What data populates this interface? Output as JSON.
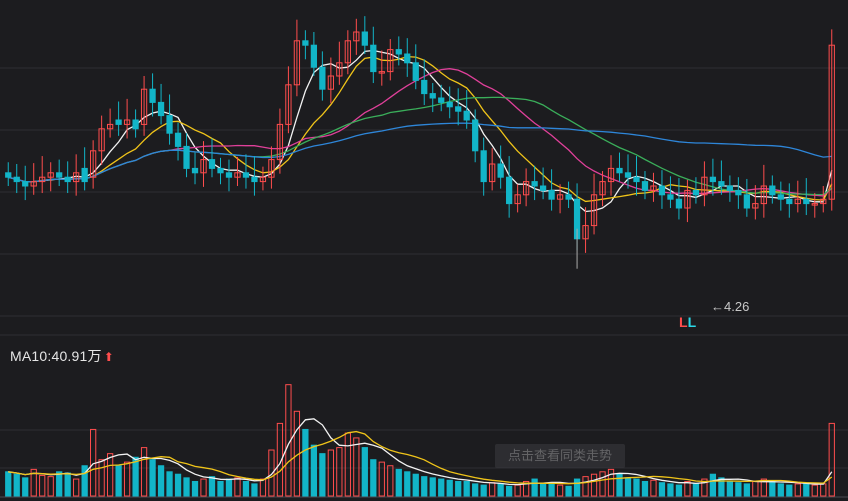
{
  "panel": {
    "ma_label": "MA10:40.91万",
    "ma_arrow": "⬆",
    "min_marker": "←4.26",
    "signal_letters": [
      {
        "text": "L",
        "color": "#ff4d4d"
      },
      {
        "text": "L",
        "color": "#2bd9e8"
      }
    ],
    "watermark": "点击查看同类走势"
  },
  "colors": {
    "background": "#1c1c1f",
    "grid": "#2e2e33",
    "up": "#ff4d4d",
    "down": "#12b5c8",
    "ma_white": "#f2f2f2",
    "ma_yellow": "#f0c419",
    "ma_pink": "#e0409a",
    "ma_green": "#3aae5a",
    "ma_blue": "#2e86d9"
  },
  "chart_data": {
    "type": "candlestick",
    "price_ylim": [
      3.7,
      7.2
    ],
    "volume_ylim": [
      0,
      100
    ],
    "candles_close": [
      5.3,
      5.25,
      5.2,
      5.25,
      5.3,
      5.35,
      5.3,
      5.25,
      5.35,
      5.25,
      5.6,
      5.85,
      5.9,
      5.9,
      5.95,
      5.85,
      6.3,
      6.15,
      6.0,
      5.8,
      5.65,
      5.4,
      5.35,
      5.5,
      5.4,
      5.35,
      5.3,
      5.35,
      5.3,
      5.25,
      5.3,
      5.5,
      5.9,
      6.35,
      6.85,
      6.8,
      6.55,
      6.3,
      6.45,
      6.6,
      6.85,
      6.95,
      6.8,
      6.5,
      6.5,
      6.75,
      6.7,
      6.6,
      6.4,
      6.25,
      6.2,
      6.15,
      6.1,
      6.05,
      5.95,
      5.6,
      5.25,
      5.45,
      5.3,
      5.0,
      5.1,
      5.25,
      5.2,
      5.15,
      5.05,
      5.1,
      5.05,
      4.6,
      4.75,
      5.1,
      5.25,
      5.4,
      5.35,
      5.3,
      5.25,
      5.15,
      5.2,
      5.1,
      5.05,
      4.95,
      5.15,
      5.1,
      5.3,
      5.25,
      5.2,
      5.15,
      5.1,
      4.95,
      5.0,
      5.2,
      5.1,
      5.05,
      5.0,
      5.05,
      5.0,
      5.0,
      5.05,
      6.8
    ],
    "candles_open": [
      5.35,
      5.3,
      5.25,
      5.2,
      5.25,
      5.3,
      5.35,
      5.3,
      5.25,
      5.4,
      5.3,
      5.6,
      5.85,
      5.95,
      5.9,
      5.95,
      5.9,
      6.3,
      6.15,
      6.0,
      5.8,
      5.65,
      5.4,
      5.35,
      5.5,
      5.4,
      5.35,
      5.3,
      5.35,
      5.3,
      5.25,
      5.3,
      5.5,
      5.9,
      6.35,
      6.85,
      6.8,
      6.55,
      6.3,
      6.45,
      6.6,
      6.85,
      6.95,
      6.8,
      6.5,
      6.5,
      6.75,
      6.7,
      6.6,
      6.4,
      6.25,
      6.2,
      6.15,
      6.1,
      6.05,
      5.95,
      5.6,
      5.25,
      5.45,
      5.3,
      5.0,
      5.1,
      5.25,
      5.2,
      5.15,
      5.05,
      5.1,
      5.05,
      4.6,
      4.75,
      5.1,
      5.25,
      5.4,
      5.35,
      5.3,
      5.25,
      5.15,
      5.2,
      5.1,
      5.05,
      4.95,
      5.15,
      5.1,
      5.3,
      5.25,
      5.2,
      5.15,
      5.1,
      4.95,
      5.0,
      5.2,
      5.1,
      5.05,
      5.0,
      5.05,
      5.0,
      5.0,
      5.05
    ],
    "min_price": 4.26,
    "volume": [
      20,
      18,
      15,
      22,
      17,
      16,
      20,
      19,
      14,
      25,
      55,
      30,
      35,
      25,
      28,
      32,
      40,
      30,
      25,
      20,
      18,
      15,
      12,
      14,
      16,
      12,
      14,
      15,
      12,
      10,
      14,
      38,
      60,
      92,
      70,
      55,
      42,
      35,
      38,
      40,
      52,
      48,
      40,
      30,
      28,
      25,
      22,
      20,
      18,
      16,
      15,
      14,
      13,
      12,
      12,
      10,
      9,
      11,
      10,
      8,
      9,
      12,
      14,
      10,
      11,
      9,
      8,
      14,
      16,
      18,
      20,
      22,
      18,
      15,
      14,
      12,
      13,
      11,
      10,
      9,
      12,
      10,
      14,
      18,
      15,
      12,
      11,
      10,
      12,
      14,
      12,
      10,
      9,
      10,
      11,
      9,
      10,
      60
    ],
    "ma10_volume_wan": 40.91
  }
}
